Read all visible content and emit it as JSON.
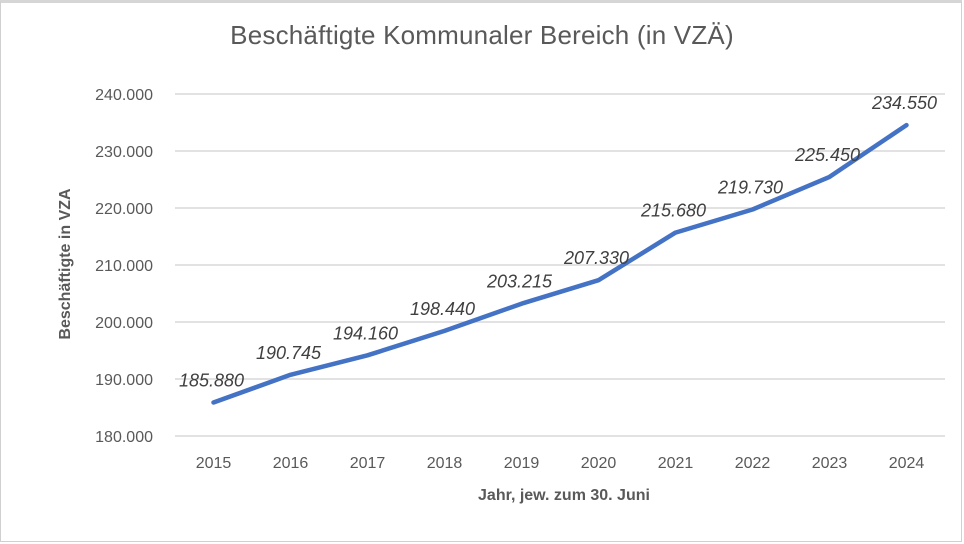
{
  "chart_data": {
    "type": "line",
    "title": "Beschäftigte Kommunaler  Bereich (in VZÄ)",
    "xlabel": "Jahr, jew. zum 30. Juni",
    "ylabel": "Beschäftigte in VZA",
    "categories": [
      "2015",
      "2016",
      "2017",
      "2018",
      "2019",
      "2020",
      "2021",
      "2022",
      "2023",
      "2024"
    ],
    "series": [
      {
        "name": "Beschäftigte",
        "values": [
          185880,
          190745,
          194160,
          198440,
          203215,
          207330,
          215680,
          219730,
          225450,
          234550
        ],
        "labels": [
          "185.880",
          "190.745",
          "194.160",
          "198.440",
          "203.215",
          "207.330",
          "215.680",
          "219.730",
          "225.450",
          "234.550"
        ],
        "color": "#4472C4"
      }
    ],
    "ylim": [
      180000,
      240000
    ],
    "yticks": [
      180000,
      190000,
      200000,
      210000,
      220000,
      230000,
      240000
    ],
    "ytick_labels": [
      "180.000",
      "190.000",
      "200.000",
      "210.000",
      "220.000",
      "230.000",
      "240.000"
    ],
    "grid": true,
    "legend": "none"
  },
  "colors": {
    "grid": "#d9d9d9",
    "text": "#595959",
    "label": "#404040"
  }
}
